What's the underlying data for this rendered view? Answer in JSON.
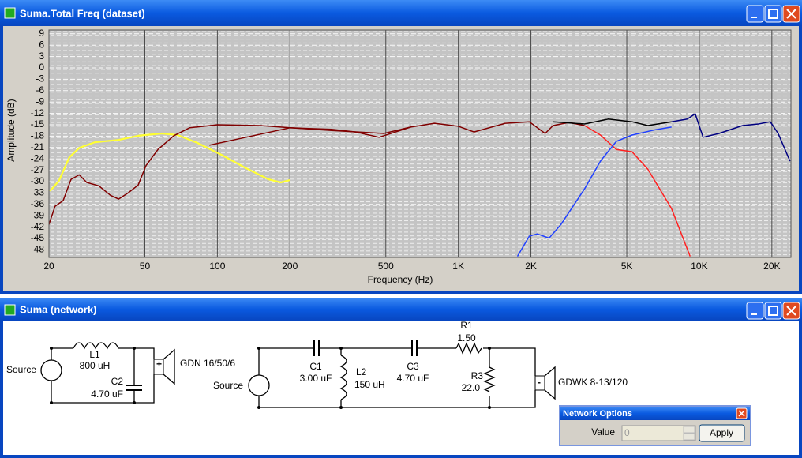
{
  "windows": [
    {
      "title": "Suma.Total Freq (dataset)"
    },
    {
      "title": "Suma (network)"
    }
  ],
  "chart_data": {
    "type": "line",
    "x_label": "Frequency (Hz)",
    "y_label": "Amplitude (dB)",
    "xscale": "log",
    "xlim": [
      20,
      24000
    ],
    "ylim": [
      -50,
      10
    ],
    "xticks": [
      20,
      50,
      100,
      200,
      500,
      {
        "value": 1000,
        "label": "1K"
      },
      {
        "value": 2000,
        "label": "2K"
      },
      {
        "value": 5000,
        "label": "5K"
      },
      {
        "value": 10000,
        "label": "10K"
      },
      {
        "value": 20000,
        "label": "20K"
      }
    ],
    "yticks": [
      9,
      6,
      3,
      0,
      -3,
      -6,
      -9,
      -12,
      -15,
      -18,
      -21,
      -24,
      -27,
      -30,
      -33,
      -36,
      -39,
      -42,
      -45,
      -48
    ],
    "grid": true,
    "background": "#c4c4c4",
    "series": [
      {
        "color": "#ffff33",
        "x": [
          20.2,
          22,
          24.3,
          26.7,
          31,
          38.9,
          46.9,
          58.9,
          68.4,
          82.7,
          103.7,
          130,
          163,
          183,
          200
        ],
        "values": [
          -32.5,
          -29.8,
          -23.6,
          -21.1,
          -19.6,
          -19,
          -17.9,
          -17.3,
          -17.7,
          -19.8,
          -22.9,
          -26.3,
          -29.4,
          -30.2,
          -29.6
        ]
      },
      {
        "color": "#800000",
        "x": [
          20,
          21.2,
          22.9,
          24.7,
          26.7,
          28.7,
          32.2,
          36,
          38.9,
          42.6,
          46.9,
          50.6,
          56.7,
          65.9,
          76.7,
          100,
          151,
          200,
          298,
          490,
          635,
          796,
          1000,
          1161,
          1567,
          1970,
          2291,
          2471,
          2873,
          3342
        ],
        "values": [
          -41.3,
          -36.5,
          -35,
          -29.4,
          -28.2,
          -30.2,
          -31.1,
          -33.6,
          -34.6,
          -33,
          -30.9,
          -25.7,
          -21.5,
          -17.9,
          -15.8,
          -15,
          -15.2,
          -15.8,
          -16.5,
          -17.3,
          -15.6,
          -14.6,
          -15.4,
          -16.9,
          -14.6,
          -14.2,
          -17.3,
          -15.2,
          -14.4,
          -15.2
        ]
      },
      {
        "color": "#800000",
        "x": [
          92.6,
          121,
          200,
          298,
          374,
          469,
          635
        ],
        "values": [
          -20.4,
          -18.8,
          -15.8,
          -16.2,
          -16.9,
          -18.3,
          -15.6
        ]
      },
      {
        "color": "#ff2020",
        "x": [
          3342,
          3886,
          4520,
          5256,
          6113,
          7667,
          9160
        ],
        "values": [
          -15.2,
          -17.7,
          -21.5,
          -22.1,
          -26.7,
          -37.1,
          -49.7
        ]
      },
      {
        "color": "#2040ff",
        "x": [
          1759,
          1970,
          2124,
          2379,
          2665,
          3342,
          3886,
          4520,
          5256,
          6592,
          7667
        ],
        "values": [
          -49.7,
          -44.4,
          -43.8,
          -44.9,
          -41.3,
          -31.9,
          -24.6,
          -19.4,
          -17.7,
          -16.3,
          -15.6
        ]
      },
      {
        "color": "#000000",
        "x": [
          2471,
          3342,
          4191,
          5256,
          6113,
          7667
        ],
        "values": [
          -14.2,
          -14.8,
          -13.5,
          -14.2,
          -15.2,
          -14.2
        ]
      },
      {
        "color": "#000080",
        "x": [
          7667,
          8916,
          9614,
          10370,
          12060,
          15120,
          17590,
          19700,
          21240,
          23790
        ],
        "values": [
          -14.2,
          -13.5,
          -12.1,
          -18.3,
          -17.3,
          -15.2,
          -14.8,
          -14.2,
          -17.3,
          -24.6
        ]
      }
    ]
  },
  "network": {
    "circuits": [
      {
        "source": "Source",
        "components": [
          {
            "name": "L1",
            "value": "800 uH"
          },
          {
            "name": "C2",
            "value": "4.70 uF"
          }
        ],
        "polarity": "+",
        "driver": "GDN 16/50/6"
      },
      {
        "source": "Source",
        "components": [
          {
            "name": "C1",
            "value": "3.00 uF"
          },
          {
            "name": "L2",
            "value": "150 uH"
          },
          {
            "name": "C3",
            "value": "4.70 uF"
          },
          {
            "name": "R1",
            "value": "1.50"
          },
          {
            "name": "R3",
            "value": "22.0"
          }
        ],
        "polarity": "-",
        "driver": "GDWK 8-13/120"
      }
    ]
  },
  "dialog": {
    "title": "Network Options",
    "field_label": "Value",
    "field_value": "0",
    "button": "Apply"
  }
}
